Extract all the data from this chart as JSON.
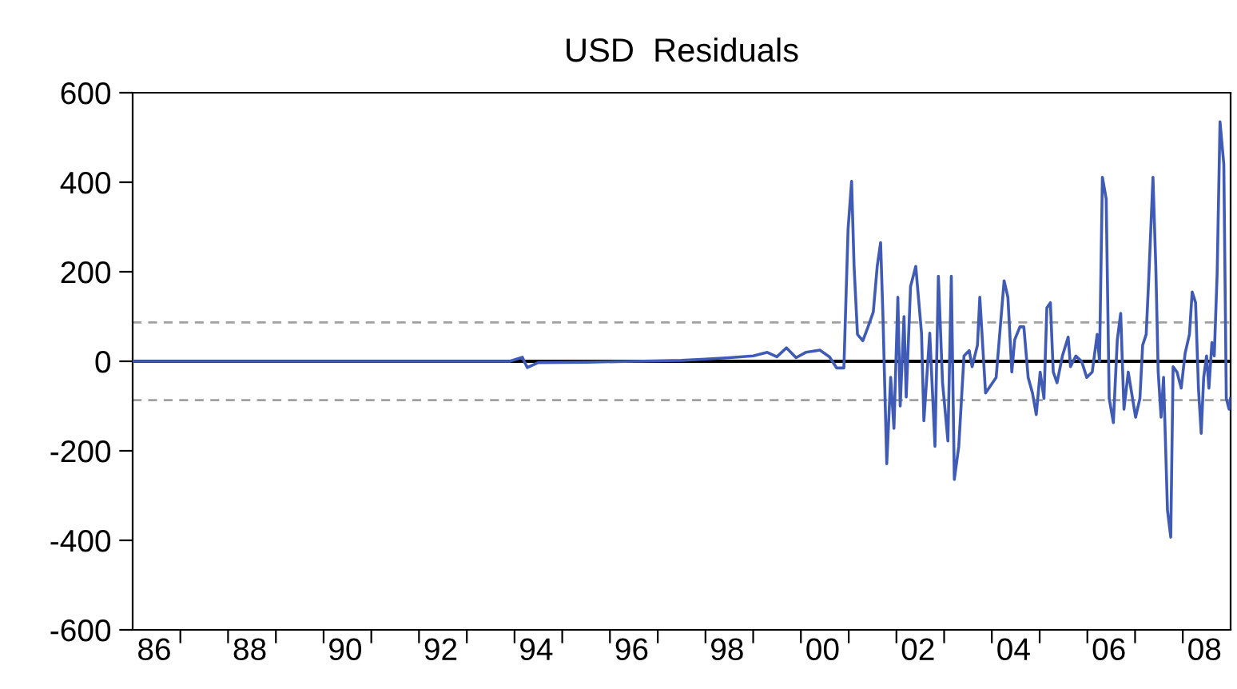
{
  "chart_data": {
    "type": "line",
    "title": "USD  Residuals",
    "x": [
      "1986-01-01",
      "1993-11-25",
      "1994-03-02",
      "1994-04-08",
      "1994-07-01",
      "1995-07-01",
      "1996-07-01",
      "1997-07-01",
      "1998-01-01",
      "1998-07-01",
      "1999-01-01",
      "1999-04-19",
      "1999-07-01",
      "1999-09-13",
      "1999-11-25",
      "2000-02-07",
      "2000-05-25",
      "2000-08-07",
      "2000-10-01",
      "2000-11-25",
      "2000-12-27",
      "2001-01-23",
      "2001-02-11",
      "2001-03-09",
      "2001-04-19",
      "2001-05-29",
      "2001-07-08",
      "2001-08-07",
      "2001-09-02",
      "2001-09-20",
      "2001-10-19",
      "2001-11-18",
      "2001-12-13",
      "2002-01-12",
      "2002-01-30",
      "2002-02-28",
      "2002-03-17",
      "2002-04-19",
      "2002-05-29",
      "2002-07-12",
      "2002-07-30",
      "2002-09-13",
      "2002-10-23",
      "2002-11-18",
      "2002-12-20",
      "2003-01-30",
      "2003-02-25",
      "2003-03-20",
      "2003-04-23",
      "2003-06-02",
      "2003-07-12",
      "2003-08-03",
      "2003-09-13",
      "2003-10-01",
      "2003-11-14",
      "2004-02-03",
      "2004-04-04",
      "2004-05-03",
      "2004-06-02",
      "2004-06-24",
      "2004-08-03",
      "2004-09-02",
      "2004-10-05",
      "2004-11-07",
      "2004-12-06",
      "2005-01-05",
      "2005-02-03",
      "2005-02-25",
      "2005-03-24",
      "2005-04-15",
      "2005-05-14",
      "2005-06-24",
      "2005-08-07",
      "2005-08-25",
      "2005-10-05",
      "2005-11-18",
      "2005-12-27",
      "2006-02-07",
      "2006-03-17",
      "2006-04-04",
      "2006-04-26",
      "2006-05-25",
      "2006-06-17",
      "2006-07-19",
      "2006-08-18",
      "2006-09-13",
      "2006-10-08",
      "2006-11-10",
      "2006-12-06",
      "2007-01-05",
      "2007-02-07",
      "2007-02-28",
      "2007-03-27",
      "2007-04-15",
      "2007-05-18",
      "2007-06-09",
      "2007-06-27",
      "2007-07-19",
      "2007-08-07",
      "2007-09-06",
      "2007-10-01",
      "2007-10-19",
      "2007-11-18",
      "2007-12-20",
      "2008-01-19",
      "2008-02-21",
      "2008-03-13",
      "2008-04-08",
      "2008-04-30",
      "2008-05-21",
      "2008-06-09",
      "2008-07-01",
      "2008-07-19",
      "2008-08-11",
      "2008-08-29",
      "2008-09-20",
      "2008-10-12",
      "2008-11-10",
      "2008-11-29",
      "2008-12-20",
      "2008-12-31"
    ],
    "series": [
      {
        "color": "#3f5bb5",
        "values": [
          0,
          0,
          9,
          -14,
          -3,
          -2,
          0,
          2,
          5,
          8,
          12,
          20,
          10,
          30,
          8,
          20,
          25,
          10,
          -15,
          -15,
          295,
          402,
          212,
          60,
          46,
          77,
          110,
          212,
          265,
          100,
          -229,
          -36,
          -150,
          143,
          -100,
          100,
          -80,
          167,
          212,
          63,
          -133,
          63,
          -190,
          190,
          -48,
          -178,
          190,
          -264,
          -190,
          12,
          24,
          -12,
          36,
          143,
          -71,
          -36,
          180,
          143,
          -24,
          48,
          77,
          77,
          -36,
          -71,
          -119,
          -24,
          -83,
          119,
          131,
          -24,
          -48,
          12,
          54,
          -12,
          12,
          0,
          -36,
          -24,
          60,
          0,
          411,
          363,
          -83,
          -137,
          48,
          107,
          -107,
          -24,
          -71,
          -125,
          -83,
          36,
          60,
          180,
          411,
          208,
          -24,
          -125,
          -36,
          -333,
          -393,
          -12,
          -24,
          -60,
          18,
          60,
          155,
          131,
          -60,
          -161,
          -36,
          12,
          -60,
          42,
          12,
          196,
          535,
          440,
          -83,
          -107,
          -83
        ]
      }
    ],
    "xlim": [
      "1986-01-01",
      "2009-01-01"
    ],
    "xticks": [
      {
        "value": "1986-06-15",
        "label": "86"
      },
      {
        "value": "1988-06-15",
        "label": "88"
      },
      {
        "value": "1990-06-15",
        "label": "90"
      },
      {
        "value": "1992-06-15",
        "label": "92"
      },
      {
        "value": "1994-06-15",
        "label": "94"
      },
      {
        "value": "1996-06-15",
        "label": "96"
      },
      {
        "value": "1998-06-15",
        "label": "98"
      },
      {
        "value": "2000-06-15",
        "label": "00"
      },
      {
        "value": "2002-06-15",
        "label": "02"
      },
      {
        "value": "2004-06-15",
        "label": "04"
      },
      {
        "value": "2006-06-15",
        "label": "06"
      },
      {
        "value": "2008-06-15",
        "label": "08"
      },
      {
        "value": "1987-01-01",
        "label": null
      },
      {
        "value": "1988-01-01",
        "label": null
      },
      {
        "value": "1989-01-01",
        "label": null
      },
      {
        "value": "1990-01-01",
        "label": null
      },
      {
        "value": "1991-01-01",
        "label": null
      },
      {
        "value": "1992-01-01",
        "label": null
      },
      {
        "value": "1993-01-01",
        "label": null
      },
      {
        "value": "1994-01-01",
        "label": null
      },
      {
        "value": "1995-01-01",
        "label": null
      },
      {
        "value": "1996-01-01",
        "label": null
      },
      {
        "value": "1997-01-01",
        "label": null
      },
      {
        "value": "1998-01-01",
        "label": null
      },
      {
        "value": "1999-01-01",
        "label": null
      },
      {
        "value": "2000-01-01",
        "label": null
      },
      {
        "value": "2001-01-01",
        "label": null
      },
      {
        "value": "2002-01-01",
        "label": null
      },
      {
        "value": "2003-01-01",
        "label": null
      },
      {
        "value": "2004-01-01",
        "label": null
      },
      {
        "value": "2005-01-01",
        "label": null
      },
      {
        "value": "2006-01-01",
        "label": null
      },
      {
        "value": "2007-01-01",
        "label": null
      },
      {
        "value": "2008-01-01",
        "label": null
      }
    ],
    "ylim": [
      -600,
      600
    ],
    "yticks": [
      -600,
      -400,
      -200,
      0,
      200,
      400,
      600
    ],
    "ref_lines": [
      {
        "axis": "y",
        "value": 0,
        "color": "#000000",
        "line_style": "solid"
      },
      {
        "axis": "y",
        "value": 87,
        "color": "#a0a0a0",
        "line_style": "dashed"
      },
      {
        "axis": "y",
        "value": -87,
        "color": "#a0a0a0",
        "line_style": "dashed"
      }
    ],
    "grid": false,
    "legend": false
  }
}
